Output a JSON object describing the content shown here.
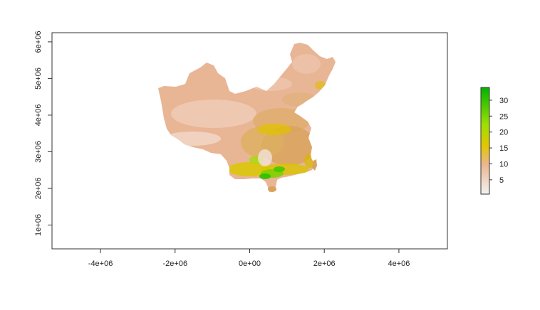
{
  "chart_data": {
    "type": "heatmap",
    "title": "",
    "xlabel": "",
    "ylabel": "",
    "xlim": [
      -5300000,
      5300000
    ],
    "ylim": [
      350000,
      6250000
    ],
    "x_ticks": [
      {
        "value": -4000000,
        "label": "-4e+06"
      },
      {
        "value": -2000000,
        "label": "-2e+06"
      },
      {
        "value": 0,
        "label": "0e+00"
      },
      {
        "value": 2000000,
        "label": "2e+06"
      },
      {
        "value": 4000000,
        "label": "4e+06"
      }
    ],
    "y_ticks": [
      {
        "value": 1000000,
        "label": "1e+06"
      },
      {
        "value": 2000000,
        "label": "2e+06"
      },
      {
        "value": 3000000,
        "label": "3e+06"
      },
      {
        "value": 4000000,
        "label": "4e+06"
      },
      {
        "value": 5000000,
        "label": "5e+06"
      },
      {
        "value": 6000000,
        "label": "6e+06"
      }
    ],
    "legend": {
      "placement": "right",
      "range": [
        0.5,
        34
      ],
      "ticks": [
        {
          "value": 5,
          "label": "5"
        },
        {
          "value": 10,
          "label": "10"
        },
        {
          "value": 15,
          "label": "15"
        },
        {
          "value": 20,
          "label": "20"
        },
        {
          "value": 25,
          "label": "25"
        },
        {
          "value": 30,
          "label": "30"
        }
      ],
      "colors": [
        "#f2f2f2",
        "#ebb58e",
        "#e3c700",
        "#9ee000",
        "#00b300"
      ]
    },
    "grid": false
  }
}
